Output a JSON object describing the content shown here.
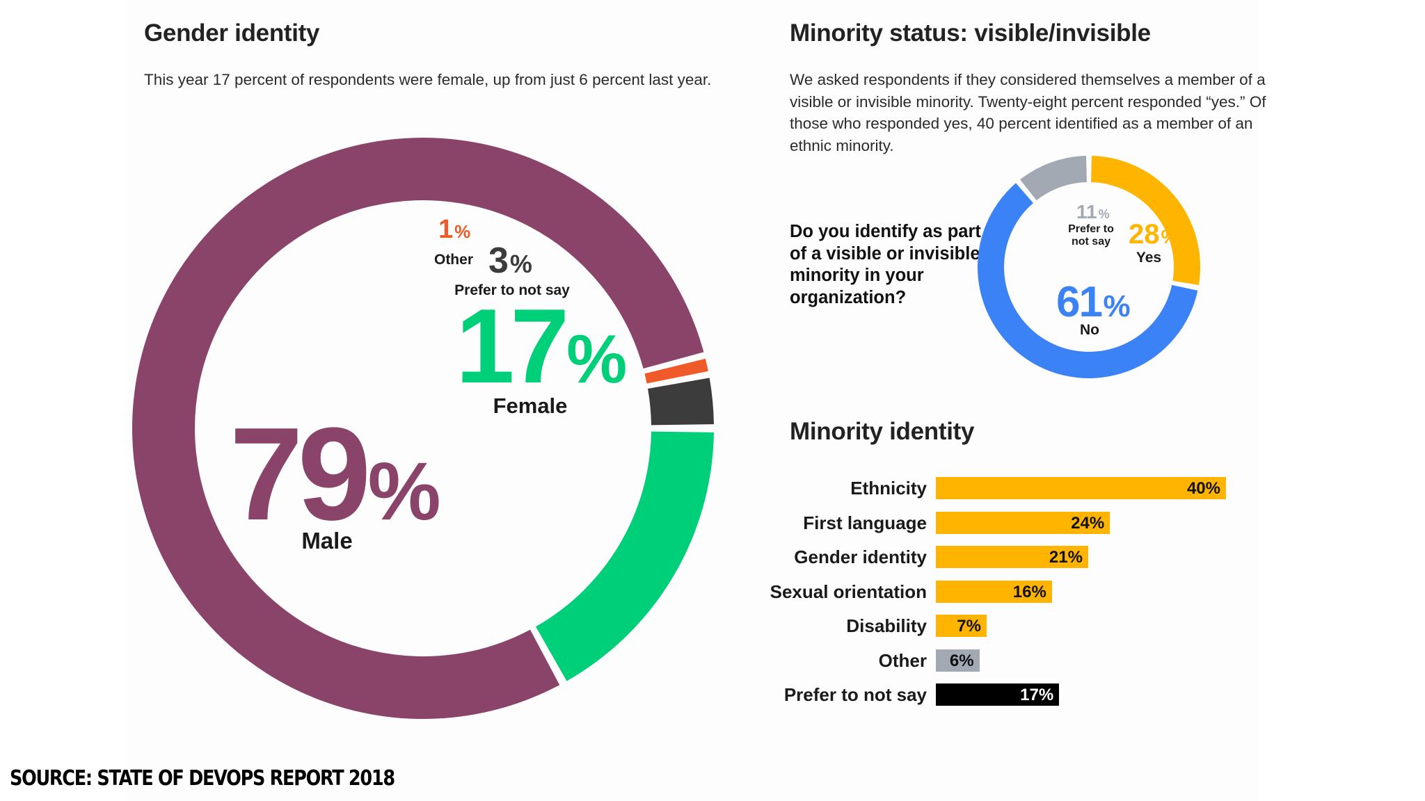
{
  "gender_section": {
    "title": "Gender identity",
    "description": "This year 17 percent of respondents were female, up from just 6 percent last year."
  },
  "minority_section": {
    "title": "Minority status: visible/invisible",
    "description": "We asked respondents if they considered themselves a member of a visible or invisible minority. Twenty-eight percent responded “yes.” Of those who responded yes, 40 percent identified as a member of an ethnic minority.",
    "question": "Do you identify as part of a visible or invisible minority in your organization?"
  },
  "identity_section": {
    "title": "Minority identity"
  },
  "source": "SOURCE: STATE OF DEVOPS REPORT 2018",
  "chart_data": [
    {
      "type": "pie",
      "title": "Gender identity",
      "slices": [
        {
          "label": "Female",
          "value": 17,
          "display": "17",
          "color": "#00cf7a"
        },
        {
          "label": "Male",
          "value": 79,
          "display": "79",
          "color": "#8a446a"
        },
        {
          "label": "Other",
          "value": 1,
          "display": "1",
          "color": "#f05a28"
        },
        {
          "label": "Prefer to not say",
          "value": 3,
          "display": "3",
          "color": "#3c3c3c"
        }
      ]
    },
    {
      "type": "pie",
      "title": "Minority status: visible/invisible",
      "slices": [
        {
          "label": "Yes",
          "value": 28,
          "display": "28",
          "color": "#ffb400"
        },
        {
          "label": "No",
          "value": 61,
          "display": "61",
          "color": "#3b82f6"
        },
        {
          "label": "Prefer to not say",
          "value": 11,
          "display": "11",
          "color": "#a3a9b3"
        }
      ]
    },
    {
      "type": "bar",
      "title": "Minority identity",
      "orientation": "horizontal",
      "categories": [
        "Ethnicity",
        "First language",
        "Gender identity",
        "Sexual orientation",
        "Disability",
        "Other",
        "Prefer to not say"
      ],
      "values": [
        40,
        24,
        21,
        16,
        7,
        6,
        17
      ],
      "labels": [
        "40%",
        "24%",
        "21%",
        "16%",
        "7%",
        "6%",
        "17%"
      ],
      "colors": [
        "#ffb400",
        "#ffb400",
        "#ffb400",
        "#ffb400",
        "#ffb400",
        "#a3a9b3",
        "#000000"
      ],
      "xlim": [
        0,
        40
      ]
    }
  ]
}
